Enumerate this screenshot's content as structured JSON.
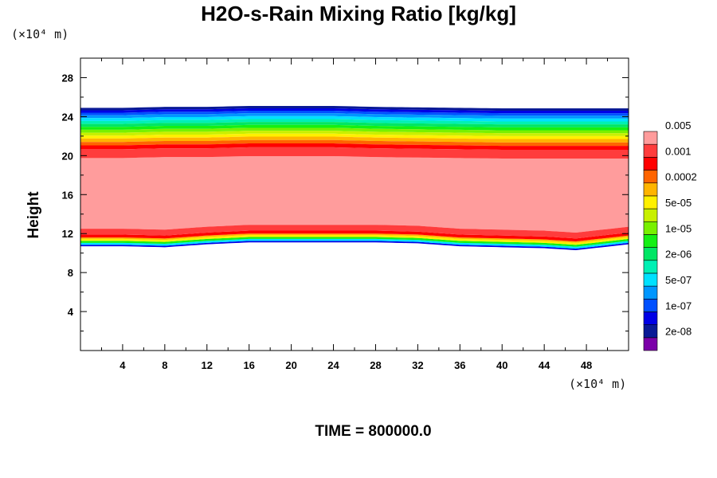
{
  "chart_data": {
    "type": "heatmap",
    "title": "H2O-s-Rain Mixing Ratio [kg/kg]",
    "ylabel": "Height",
    "xlabel": "",
    "x_unit": "(×10⁴ m)",
    "y_unit": "(×10⁴ m)",
    "xlim": [
      0,
      52
    ],
    "ylim": [
      0,
      30
    ],
    "x_ticks": [
      4,
      8,
      12,
      16,
      20,
      24,
      28,
      32,
      36,
      40,
      44,
      48
    ],
    "y_ticks": [
      4,
      8,
      12,
      16,
      20,
      24,
      28
    ],
    "grid": false,
    "colorbar": {
      "colors": [
        "#7b00a8",
        "#0a1a96",
        "#0000e6",
        "#0050ff",
        "#0096ff",
        "#00e1ff",
        "#00f0b4",
        "#00e664",
        "#14f014",
        "#78f000",
        "#c8f000",
        "#fff000",
        "#ffb400",
        "#ff6400",
        "#ff0000",
        "#ff3c3c",
        "#ff9c9c"
      ],
      "labels": [
        "2e-08",
        "1e-07",
        "5e-07",
        "2e-06",
        "1e-05",
        "5e-05",
        "0.0002",
        "0.001",
        "0.005"
      ]
    },
    "bands_description": {
      "top_profile_height": [
        24.9,
        24.9,
        25.0,
        25.0,
        25.1,
        25.1,
        25.1,
        25.0,
        24.95,
        24.9,
        24.85,
        24.85,
        24.85,
        24.85
      ],
      "top_profile_x": [
        0,
        4,
        8,
        12,
        16,
        20,
        24,
        28,
        32,
        36,
        40,
        44,
        48,
        52
      ],
      "bottom_profile_height": [
        10.7,
        10.7,
        10.6,
        10.9,
        11.1,
        11.1,
        11.1,
        11.1,
        11.0,
        10.7,
        10.6,
        10.5,
        10.3,
        10.9
      ],
      "bottom_profile_x": [
        0,
        4,
        8,
        12,
        16,
        20,
        24,
        28,
        32,
        36,
        40,
        44,
        47,
        52
      ]
    }
  },
  "footer": {
    "time_label": "TIME = 800000.0"
  }
}
